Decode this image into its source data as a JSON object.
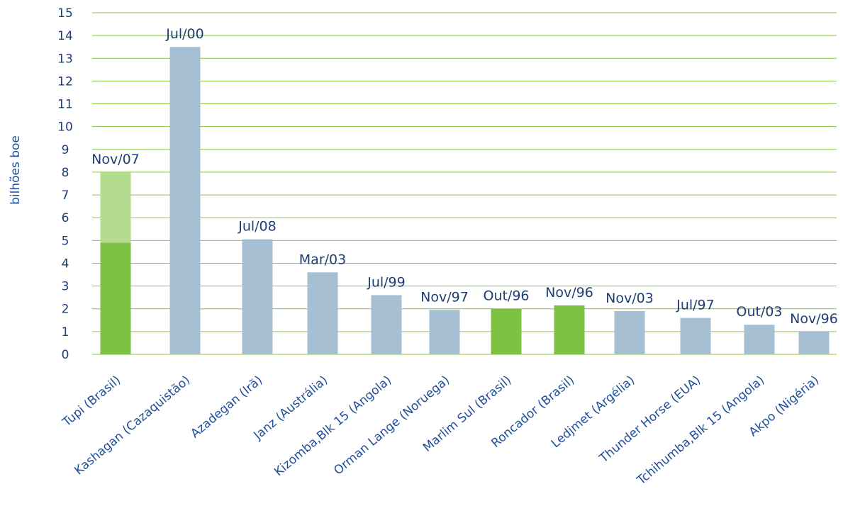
{
  "chart_data": {
    "type": "bar",
    "ylabel": "bilhões boe",
    "ylim": [
      0,
      15
    ],
    "y_ticks": [
      "0",
      "1",
      "2",
      "3",
      "4",
      "5",
      "6",
      "7",
      "8",
      "9",
      "10",
      "11",
      "12",
      "13",
      "14",
      "15"
    ],
    "grid": true,
    "categories": [
      "Tupi (Brasil)",
      "Kashagan (Cazaquistão)",
      "Azadegan (Irã)",
      "Janz (Austrália)",
      "Kizomba,Blk 15 (Angola)",
      "Orman Lange (Noruega)",
      "Marlim Sul (Brasil)",
      "Roncador (Brasil)",
      "Ledjmet (Argélia)",
      "Thunder Horse (EUA)",
      "Tchihumba,Blk 15 (Angola)",
      "Akpo (Nigéria)"
    ],
    "series": [
      {
        "values": [
          4.9,
          13.5,
          5.05,
          3.6,
          2.6,
          1.95,
          2.0,
          2.15,
          1.9,
          1.6,
          1.3,
          1.0
        ]
      },
      {
        "values": [
          3.1,
          0,
          0,
          0,
          0,
          0,
          0,
          0,
          0,
          0,
          0,
          0
        ]
      }
    ],
    "data_labels": [
      "Nov/07",
      "Jul/00",
      "Jul/08",
      "Mar/03",
      "Jul/99",
      "Nov/97",
      "Out/96",
      "Nov/96",
      "Nov/03",
      "Jul/97",
      "Out/03",
      "Nov/96"
    ],
    "colors": [
      "#7dc242",
      "#a7bfd3",
      "#a7bfd3",
      "#a7bfd3",
      "#a7bfd3",
      "#a7bfd3",
      "#7dc242",
      "#7dc242",
      "#a7bfd3",
      "#a7bfd3",
      "#a7bfd3",
      "#a7bfd3"
    ],
    "upper_segment_color": "#b3dc8f",
    "grid_color": "#8cc63f",
    "text_color": "#1f3f73"
  }
}
